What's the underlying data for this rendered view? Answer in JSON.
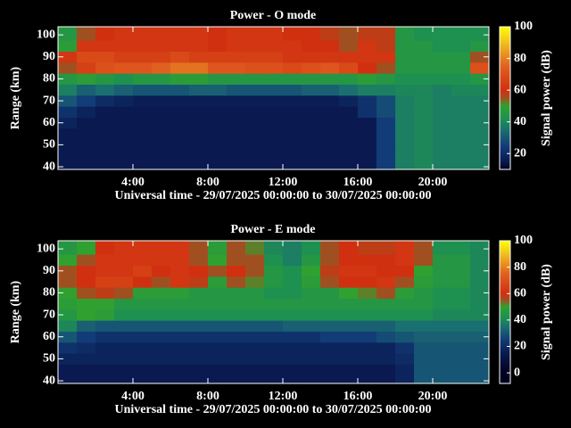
{
  "chart_data": [
    {
      "type": "heatmap",
      "title": "Power - O mode",
      "xlabel": "Universal time - 29/07/2025 00:00:00 to 30/07/2025 00:00:00",
      "ylabel": "Range (km)",
      "colorbar_label": "Signal power (dB)",
      "xlim": [
        0,
        23
      ],
      "ylim": [
        38.8,
        103.7
      ],
      "xticks": [
        {
          "value": 4,
          "label": "4:00"
        },
        {
          "value": 8,
          "label": "8:00"
        },
        {
          "value": 12,
          "label": "12:00"
        },
        {
          "value": 16,
          "label": "16:00"
        },
        {
          "value": 20,
          "label": "20:00"
        }
      ],
      "yticks": [
        40,
        50,
        60,
        70,
        80,
        90,
        100
      ],
      "clim": [
        10,
        100
      ],
      "cticks": [
        20,
        40,
        60,
        80,
        100
      ],
      "colorscale": [
        [
          0,
          "#000020"
        ],
        [
          15,
          "#0a1a50"
        ],
        [
          25,
          "#123c78"
        ],
        [
          35,
          "#1a7070"
        ],
        [
          42,
          "#1e9050"
        ],
        [
          50,
          "#30a030"
        ],
        [
          55,
          "#a05020"
        ],
        [
          60,
          "#d03010"
        ],
        [
          75,
          "#e06020"
        ],
        [
          90,
          "#f0c020"
        ],
        [
          100,
          "#ffff00"
        ]
      ],
      "xbins": [
        0,
        1,
        2,
        3,
        4,
        5,
        6,
        7,
        8,
        9,
        10,
        11,
        12,
        13,
        14,
        15,
        16,
        17,
        18,
        19,
        20,
        21,
        22,
        23
      ],
      "ybins": [
        37.5,
        42.5,
        47.5,
        52.5,
        57.5,
        62.5,
        67.5,
        72.5,
        77.5,
        82.5,
        87.5,
        92.5,
        97.5,
        105
      ],
      "z": [
        [
          15,
          15,
          15,
          15,
          15,
          15,
          15,
          15,
          15,
          15,
          15,
          15,
          15,
          15,
          15,
          15,
          15,
          25,
          38,
          40,
          38,
          38,
          38
        ],
        [
          15,
          15,
          15,
          15,
          15,
          15,
          15,
          15,
          15,
          15,
          15,
          15,
          15,
          15,
          15,
          15,
          15,
          25,
          38,
          40,
          38,
          38,
          38
        ],
        [
          15,
          15,
          15,
          15,
          15,
          15,
          15,
          15,
          15,
          15,
          15,
          15,
          15,
          15,
          15,
          15,
          15,
          25,
          38,
          40,
          38,
          38,
          38
        ],
        [
          15,
          15,
          15,
          15,
          15,
          15,
          15,
          15,
          15,
          15,
          15,
          15,
          15,
          15,
          15,
          15,
          15,
          25,
          38,
          40,
          38,
          38,
          38
        ],
        [
          18,
          15,
          15,
          15,
          15,
          15,
          15,
          15,
          15,
          15,
          15,
          15,
          15,
          15,
          15,
          15,
          15,
          25,
          38,
          40,
          38,
          38,
          38
        ],
        [
          22,
          18,
          15,
          15,
          15,
          15,
          15,
          15,
          15,
          15,
          15,
          15,
          15,
          15,
          15,
          15,
          22,
          28,
          38,
          40,
          38,
          38,
          38
        ],
        [
          30,
          25,
          20,
          18,
          16,
          16,
          16,
          16,
          16,
          16,
          16,
          16,
          16,
          16,
          16,
          18,
          22,
          28,
          38,
          40,
          38,
          38,
          38
        ],
        [
          38,
          32,
          35,
          32,
          30,
          30,
          30,
          32,
          32,
          30,
          30,
          30,
          30,
          32,
          32,
          35,
          38,
          38,
          40,
          40,
          38,
          40,
          40
        ],
        [
          45,
          48,
          45,
          42,
          45,
          45,
          48,
          48,
          45,
          45,
          45,
          45,
          45,
          45,
          45,
          45,
          48,
          45,
          42,
          42,
          42,
          42,
          45
        ],
        [
          55,
          65,
          70,
          72,
          72,
          75,
          78,
          78,
          72,
          72,
          70,
          70,
          68,
          70,
          72,
          68,
          60,
          55,
          45,
          45,
          45,
          45,
          70
        ],
        [
          62,
          68,
          68,
          65,
          65,
          65,
          68,
          65,
          65,
          65,
          65,
          65,
          62,
          62,
          62,
          62,
          62,
          62,
          45,
          45,
          45,
          45,
          55
        ],
        [
          48,
          62,
          62,
          62,
          62,
          62,
          62,
          62,
          60,
          62,
          62,
          62,
          62,
          60,
          60,
          55,
          62,
          58,
          45,
          45,
          42,
          42,
          45
        ],
        [
          45,
          55,
          60,
          62,
          62,
          62,
          62,
          62,
          60,
          62,
          62,
          62,
          60,
          60,
          58,
          55,
          58,
          58,
          45,
          42,
          42,
          42,
          42
        ]
      ]
    },
    {
      "type": "heatmap",
      "title": "Power - E mode",
      "xlabel": "Universal time - 29/07/2025 00:00:00 to 30/07/2025 00:00:00",
      "ylabel": "Range (km)",
      "colorbar_label": "Signal power (dB)",
      "xlim": [
        0,
        23
      ],
      "ylim": [
        38.8,
        103.7
      ],
      "xticks": [
        {
          "value": 4,
          "label": "4:00"
        },
        {
          "value": 8,
          "label": "8:00"
        },
        {
          "value": 12,
          "label": "12:00"
        },
        {
          "value": 16,
          "label": "16:00"
        },
        {
          "value": 20,
          "label": "20:00"
        }
      ],
      "yticks": [
        40,
        50,
        60,
        70,
        80,
        90,
        100
      ],
      "clim": [
        -8,
        100
      ],
      "cticks": [
        0,
        20,
        40,
        60,
        80,
        100
      ],
      "colorscale": [
        [
          0,
          "#000020"
        ],
        [
          15,
          "#0a1a50"
        ],
        [
          25,
          "#123c78"
        ],
        [
          35,
          "#1a7070"
        ],
        [
          42,
          "#1e9050"
        ],
        [
          50,
          "#30a030"
        ],
        [
          55,
          "#a05020"
        ],
        [
          60,
          "#d03010"
        ],
        [
          75,
          "#e06020"
        ],
        [
          90,
          "#f0c020"
        ],
        [
          100,
          "#ffff00"
        ]
      ],
      "xbins": [
        0,
        1,
        2,
        3,
        4,
        5,
        6,
        7,
        8,
        9,
        10,
        11,
        12,
        13,
        14,
        15,
        16,
        17,
        18,
        19,
        20,
        21,
        22,
        23
      ],
      "ybins": [
        37.5,
        42.5,
        47.5,
        52.5,
        57.5,
        62.5,
        67.5,
        72.5,
        77.5,
        82.5,
        87.5,
        92.5,
        97.5,
        105
      ],
      "z": [
        [
          15,
          15,
          15,
          15,
          15,
          15,
          15,
          15,
          15,
          15,
          15,
          15,
          15,
          15,
          15,
          15,
          15,
          15,
          18,
          30,
          30,
          30,
          30
        ],
        [
          15,
          15,
          15,
          15,
          15,
          15,
          15,
          15,
          15,
          15,
          15,
          15,
          15,
          15,
          15,
          15,
          15,
          15,
          18,
          30,
          30,
          30,
          30
        ],
        [
          18,
          18,
          18,
          18,
          18,
          18,
          18,
          18,
          18,
          18,
          18,
          18,
          18,
          18,
          18,
          18,
          18,
          18,
          20,
          30,
          30,
          30,
          30
        ],
        [
          22,
          20,
          18,
          18,
          18,
          18,
          18,
          18,
          18,
          18,
          18,
          18,
          18,
          18,
          18,
          18,
          18,
          18,
          22,
          30,
          30,
          30,
          30
        ],
        [
          30,
          25,
          22,
          22,
          22,
          22,
          22,
          22,
          22,
          22,
          22,
          22,
          22,
          22,
          25,
          25,
          25,
          28,
          30,
          32,
          32,
          32,
          32
        ],
        [
          40,
          32,
          30,
          30,
          30,
          30,
          30,
          30,
          30,
          30,
          30,
          30,
          32,
          32,
          32,
          32,
          32,
          32,
          35,
          35,
          35,
          35,
          35
        ],
        [
          45,
          50,
          48,
          42,
          42,
          42,
          42,
          42,
          42,
          42,
          42,
          42,
          42,
          42,
          42,
          42,
          42,
          42,
          42,
          42,
          40,
          40,
          40
        ],
        [
          48,
          50,
          50,
          45,
          45,
          45,
          45,
          45,
          45,
          45,
          45,
          45,
          45,
          45,
          45,
          45,
          45,
          45,
          45,
          45,
          42,
          42,
          40
        ],
        [
          50,
          55,
          58,
          55,
          48,
          48,
          48,
          45,
          45,
          45,
          45,
          42,
          42,
          45,
          45,
          50,
          52,
          55,
          48,
          45,
          42,
          42,
          40
        ],
        [
          55,
          60,
          65,
          65,
          60,
          55,
          62,
          58,
          48,
          55,
          52,
          45,
          42,
          48,
          55,
          60,
          60,
          62,
          55,
          48,
          45,
          45,
          40
        ],
        [
          55,
          60,
          62,
          62,
          65,
          60,
          62,
          60,
          55,
          60,
          55,
          45,
          42,
          50,
          58,
          62,
          62,
          60,
          60,
          50,
          45,
          45,
          40
        ],
        [
          50,
          55,
          62,
          62,
          62,
          62,
          62,
          55,
          50,
          55,
          55,
          42,
          38,
          45,
          55,
          60,
          60,
          60,
          62,
          55,
          45,
          45,
          40
        ],
        [
          45,
          50,
          60,
          62,
          62,
          62,
          62,
          55,
          48,
          55,
          52,
          40,
          38,
          42,
          55,
          60,
          58,
          58,
          62,
          55,
          42,
          42,
          40
        ]
      ]
    }
  ]
}
